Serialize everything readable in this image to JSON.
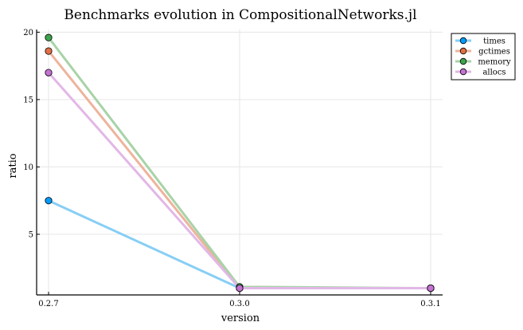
{
  "chart_data": {
    "type": "line",
    "title": "Benchmarks evolution in CompositionalNetworks.jl",
    "xlabel": "version",
    "ylabel": "ratio",
    "categories": [
      "0.2.7",
      "0.3.0",
      "0.3.1"
    ],
    "ylim": [
      0.5,
      20.2
    ],
    "yticks": [
      5,
      10,
      15,
      20
    ],
    "grid": true,
    "legend_position": "top-right",
    "series": [
      {
        "name": "times",
        "values": [
          7.5,
          1.0,
          1.0
        ],
        "line_color": "#87CEF5",
        "marker_color": "#009AFA"
      },
      {
        "name": "gctimes",
        "values": [
          18.6,
          1.0,
          1.0
        ],
        "line_color": "#EDB49C",
        "marker_color": "#E26F46"
      },
      {
        "name": "memory",
        "values": [
          19.6,
          1.1,
          1.0
        ],
        "line_color": "#A8D3A8",
        "marker_color": "#3EA44E"
      },
      {
        "name": "allocs",
        "values": [
          17.0,
          1.0,
          1.0
        ],
        "line_color": "#E2B7E6",
        "marker_color": "#C372D2"
      }
    ]
  }
}
